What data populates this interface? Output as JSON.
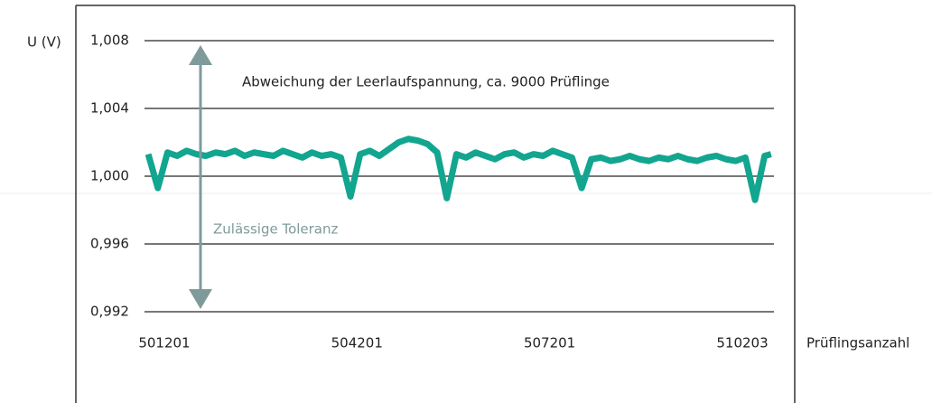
{
  "chart_data": {
    "type": "line",
    "y_label": "U (V)",
    "x_label": "Prüflingsanzahl",
    "annotation": "Abweichung der Leerlaufspannung, ca. 9000 Prüflinge",
    "tolerance_label": "Zulässige Toleranz",
    "xlim": [
      500892,
      510695
    ],
    "xticks": [
      501201,
      504201,
      507201,
      510203
    ],
    "ylim": [
      0.992,
      1.008
    ],
    "yticks": [
      {
        "value": 0.992,
        "label": "0,992"
      },
      {
        "value": 0.996,
        "label": "0,996"
      },
      {
        "value": 1.0,
        "label": "1,000"
      },
      {
        "value": 1.004,
        "label": "1,004"
      },
      {
        "value": 1.008,
        "label": "1,008"
      }
    ],
    "grid": true,
    "series": [
      {
        "color": "#12a58f",
        "x": [
          500950,
          501100,
          501250,
          501400,
          501550,
          501700,
          501850,
          502000,
          502150,
          502300,
          502450,
          502600,
          502750,
          502900,
          503050,
          503200,
          503350,
          503500,
          503650,
          503800,
          503950,
          504100,
          504250,
          504400,
          504550,
          504700,
          504850,
          505000,
          505150,
          505300,
          505450,
          505600,
          505750,
          505900,
          506050,
          506200,
          506350,
          506500,
          506650,
          506800,
          506950,
          507100,
          507250,
          507400,
          507550,
          507700,
          507850,
          508000,
          508150,
          508300,
          508450,
          508600,
          508750,
          508900,
          509050,
          509200,
          509350,
          509500,
          509650,
          509800,
          509950,
          510100,
          510250,
          510400,
          510550,
          510650
        ],
        "values": [
          1.0013,
          0.9993,
          1.0014,
          1.0012,
          1.0015,
          1.0013,
          1.0012,
          1.0014,
          1.0013,
          1.0015,
          1.0012,
          1.0014,
          1.0013,
          1.0012,
          1.0015,
          1.0013,
          1.0011,
          1.0014,
          1.0012,
          1.0013,
          1.0011,
          0.9988,
          1.0013,
          1.0015,
          1.0012,
          1.0016,
          1.002,
          1.0022,
          1.0021,
          1.0019,
          1.0014,
          0.9987,
          1.0013,
          1.0011,
          1.0014,
          1.0012,
          1.001,
          1.0013,
          1.0014,
          1.0011,
          1.0013,
          1.0012,
          1.0015,
          1.0013,
          1.0011,
          0.9993,
          1.001,
          1.0011,
          1.0009,
          1.001,
          1.0012,
          1.001,
          1.0009,
          1.0011,
          1.001,
          1.0012,
          1.001,
          1.0009,
          1.0011,
          1.0012,
          1.001,
          1.0009,
          1.0011,
          0.9986,
          1.0012,
          1.0013
        ]
      }
    ]
  }
}
